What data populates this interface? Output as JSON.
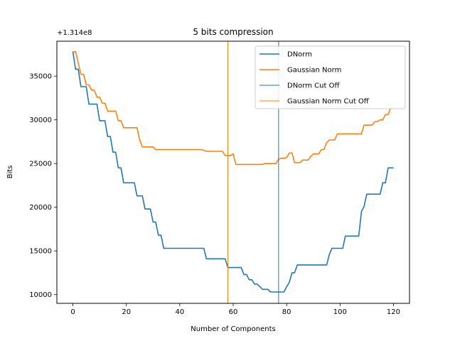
{
  "chart_data": {
    "type": "line",
    "title": "5 bits compression",
    "xlabel": "Number of Components",
    "ylabel": "Bits",
    "offset_label": "+1.314e8",
    "xlim": [
      -6,
      126
    ],
    "ylim": [
      9000,
      39000
    ],
    "xticks": [
      0,
      20,
      40,
      60,
      80,
      100,
      120
    ],
    "yticks": [
      10000,
      15000,
      20000,
      25000,
      30000,
      35000
    ],
    "ytick_labels": [
      "10000",
      "15000",
      "20000",
      "25000",
      "30000",
      "35000"
    ],
    "grid": false,
    "legend": {
      "placement": "top-right"
    },
    "series": [
      {
        "name": "DNorm",
        "color": "#1f77b4",
        "x": [
          0,
          1,
          2,
          3,
          4,
          5,
          6,
          7,
          8,
          9,
          10,
          11,
          12,
          13,
          14,
          15,
          16,
          17,
          18,
          19,
          20,
          21,
          22,
          23,
          24,
          25,
          26,
          27,
          28,
          29,
          30,
          31,
          32,
          33,
          34,
          35,
          36,
          37,
          38,
          39,
          40,
          41,
          42,
          43,
          44,
          45,
          46,
          47,
          48,
          49,
          50,
          51,
          52,
          53,
          54,
          55,
          56,
          57,
          58,
          59,
          60,
          61,
          62,
          63,
          64,
          65,
          66,
          67,
          68,
          69,
          70,
          71,
          72,
          73,
          74,
          75,
          76,
          77,
          78,
          79,
          80,
          81,
          82,
          83,
          84,
          85,
          86,
          87,
          88,
          89,
          90,
          91,
          92,
          93,
          94,
          95,
          96,
          97,
          98,
          99,
          100,
          101,
          102,
          103,
          104,
          105,
          106,
          107,
          108,
          109,
          110,
          111,
          112,
          113,
          114,
          115,
          116,
          117,
          118,
          119,
          120
        ],
        "values": [
          37800,
          35800,
          35800,
          33800,
          33800,
          33800,
          31800,
          31800,
          31800,
          31800,
          29900,
          29900,
          29900,
          28100,
          28100,
          26300,
          26300,
          24500,
          24500,
          22800,
          22800,
          22800,
          22800,
          22800,
          21300,
          21300,
          21300,
          19800,
          19800,
          19800,
          18300,
          18300,
          16800,
          16800,
          15300,
          15300,
          15300,
          15300,
          15300,
          15300,
          15300,
          15300,
          15300,
          15300,
          15300,
          15300,
          15300,
          15300,
          15300,
          15300,
          14100,
          14100,
          14100,
          14100,
          14100,
          14100,
          14100,
          14100,
          13100,
          13100,
          13100,
          13100,
          13100,
          13100,
          12300,
          12300,
          11700,
          11700,
          11200,
          11200,
          10900,
          10600,
          10600,
          10600,
          10300,
          10300,
          10300,
          10300,
          10300,
          10300,
          10900,
          11400,
          12500,
          12500,
          13400,
          13400,
          13400,
          13400,
          13400,
          13400,
          13400,
          13400,
          13400,
          13400,
          13400,
          13400,
          14600,
          15300,
          15300,
          15300,
          15300,
          15300,
          16700,
          16700,
          16700,
          16700,
          16700,
          16700,
          19500,
          20100,
          21500,
          21500,
          21500,
          21500,
          21500,
          21500,
          22800,
          22800,
          24500,
          24500,
          24500
        ]
      },
      {
        "name": "Gaussian Norm",
        "color": "#ff7f0e",
        "x": [
          0,
          1,
          2,
          3,
          4,
          5,
          6,
          7,
          8,
          9,
          10,
          11,
          12,
          13,
          14,
          15,
          16,
          17,
          18,
          19,
          20,
          21,
          22,
          23,
          24,
          25,
          26,
          27,
          28,
          29,
          30,
          31,
          32,
          33,
          34,
          35,
          36,
          37,
          38,
          39,
          40,
          41,
          42,
          43,
          44,
          45,
          46,
          47,
          48,
          49,
          50,
          51,
          52,
          53,
          54,
          55,
          56,
          57,
          58,
          59,
          60,
          61,
          62,
          63,
          64,
          65,
          66,
          67,
          68,
          69,
          70,
          71,
          72,
          73,
          74,
          75,
          76,
          77,
          78,
          79,
          80,
          81,
          82,
          83,
          84,
          85,
          86,
          87,
          88,
          89,
          90,
          91,
          92,
          93,
          94,
          95,
          96,
          97,
          98,
          99,
          100,
          101,
          102,
          103,
          104,
          105,
          106,
          107,
          108,
          109,
          110,
          111,
          112,
          113,
          114,
          115,
          116,
          117,
          118,
          119,
          120
        ],
        "values": [
          37800,
          37800,
          36500,
          35200,
          35200,
          34000,
          34000,
          33400,
          33400,
          32600,
          32600,
          31900,
          31900,
          31000,
          31000,
          31000,
          31000,
          29900,
          29900,
          29100,
          29100,
          29100,
          29100,
          29100,
          29100,
          27700,
          26900,
          26900,
          26900,
          26900,
          26900,
          26600,
          26600,
          26600,
          26600,
          26600,
          26600,
          26600,
          26600,
          26600,
          26600,
          26600,
          26600,
          26600,
          26600,
          26600,
          26600,
          26600,
          26600,
          26500,
          26400,
          26400,
          26400,
          26400,
          26400,
          26400,
          26400,
          25900,
          25900,
          25900,
          26100,
          24900,
          24900,
          24900,
          24900,
          24900,
          24900,
          24900,
          24900,
          24900,
          24900,
          24900,
          25000,
          25000,
          25000,
          25000,
          25000,
          25500,
          25600,
          25600,
          25700,
          26200,
          26200,
          25100,
          25100,
          25100,
          25400,
          25400,
          25400,
          25800,
          26100,
          26100,
          26100,
          26600,
          26600,
          27400,
          27700,
          27700,
          27700,
          28400,
          28400,
          28400,
          28400,
          28400,
          28400,
          28400,
          28400,
          28400,
          28400,
          29400,
          29400,
          29400,
          29400,
          29800,
          29800,
          30000,
          30000,
          30600,
          30600,
          31400,
          31400
        ]
      }
    ],
    "cutoffs": [
      {
        "name": "DNorm Cut Off",
        "color": "#1f77b4",
        "x": 77
      },
      {
        "name": "Gaussian Norm Cut Off",
        "color": "#ff7f0e",
        "x": 58
      }
    ]
  }
}
